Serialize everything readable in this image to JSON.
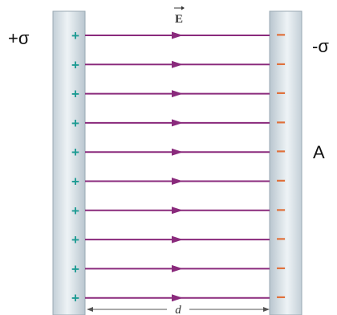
{
  "labels": {
    "positive_plate": "+σ",
    "negative_plate": "-σ",
    "area": "A",
    "field": "E",
    "distance": "d",
    "plus_sign": "+",
    "minus_sign": "−"
  },
  "charge_count": 10,
  "colors": {
    "field_line": "#8a2a7c",
    "plus_sign": "#1d9b93",
    "minus_sign": "#e0703a",
    "plate_fill": "#d8e2e8",
    "plate_edge": "#9aa9b3"
  }
}
